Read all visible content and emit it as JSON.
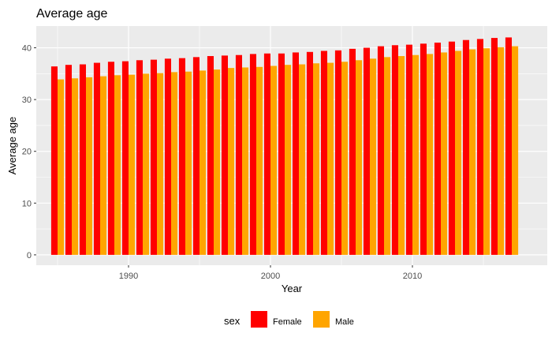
{
  "chart_data": {
    "type": "bar",
    "title": "Average age",
    "xlabel": "Year",
    "ylabel": "Average age",
    "x": [
      1985,
      1986,
      1987,
      1988,
      1989,
      1990,
      1991,
      1992,
      1993,
      1994,
      1995,
      1996,
      1997,
      1998,
      1999,
      2000,
      2001,
      2002,
      2003,
      2004,
      2005,
      2006,
      2007,
      2008,
      2009,
      2010,
      2011,
      2012,
      2013,
      2014,
      2015,
      2016,
      2017
    ],
    "x_ticks": [
      1990,
      2000,
      2010
    ],
    "y_ticks": [
      0,
      10,
      20,
      30,
      40
    ],
    "xlim": [
      1983.5,
      2019.5
    ],
    "ylim": [
      -2,
      44.2
    ],
    "grid": true,
    "legend_position": "bottom",
    "legend_title": "sex",
    "series": [
      {
        "name": "Female",
        "color": "#ff0000",
        "values": [
          36.4,
          36.7,
          36.8,
          37.1,
          37.3,
          37.4,
          37.6,
          37.7,
          37.9,
          38.0,
          38.2,
          38.4,
          38.5,
          38.6,
          38.8,
          38.9,
          38.9,
          39.1,
          39.2,
          39.4,
          39.5,
          39.8,
          40.0,
          40.3,
          40.5,
          40.6,
          40.8,
          41.0,
          41.2,
          41.5,
          41.7,
          41.9,
          42.0
        ]
      },
      {
        "name": "Male",
        "color": "#ffa500",
        "values": [
          33.9,
          34.1,
          34.3,
          34.5,
          34.7,
          34.8,
          35.0,
          35.1,
          35.3,
          35.4,
          35.6,
          35.8,
          36.1,
          36.2,
          36.3,
          36.5,
          36.7,
          36.8,
          37.0,
          37.1,
          37.3,
          37.6,
          37.9,
          38.2,
          38.4,
          38.6,
          38.8,
          39.1,
          39.4,
          39.7,
          39.9,
          40.1,
          40.3
        ]
      }
    ]
  }
}
